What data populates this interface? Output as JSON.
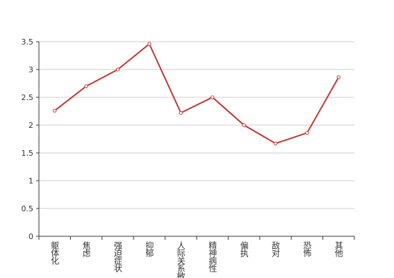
{
  "chart_data": {
    "type": "line",
    "categories": [
      "躯体化",
      "焦虑",
      "强迫症状",
      "抑郁",
      "人际关系敏感",
      "精神病性",
      "偏执",
      "敌对",
      "恐怖",
      "其他"
    ],
    "series": [
      {
        "color": "#c23531",
        "values": [
          2.26,
          2.7,
          3.0,
          3.46,
          2.22,
          2.5,
          2.0,
          1.67,
          1.86,
          2.86
        ]
      }
    ],
    "ylim": [
      0,
      3.5
    ],
    "yticks": [
      0,
      0.5,
      1,
      1.5,
      2,
      2.5,
      3,
      3.5
    ],
    "grid": true
  }
}
